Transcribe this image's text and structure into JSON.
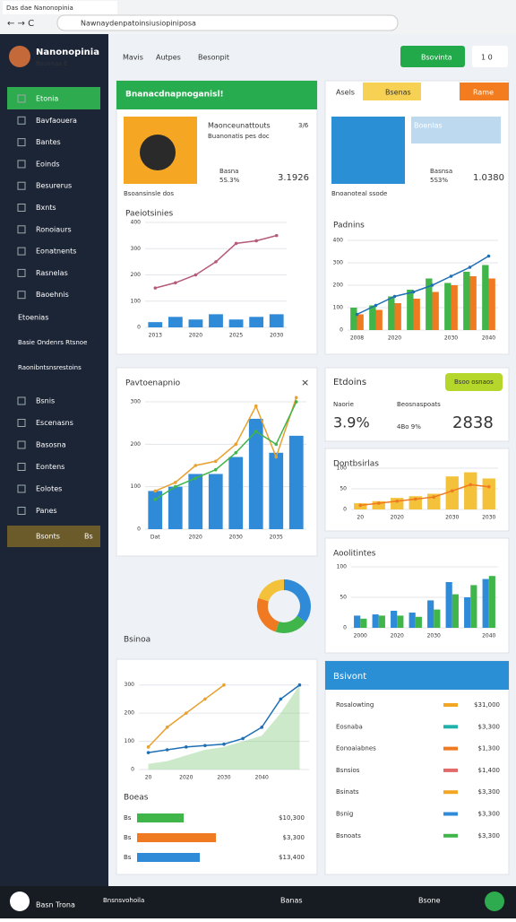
{
  "browser": {
    "tab": "Das dae Nanonopinia",
    "url": "Nawnaydenpatoinsiusiopiniposa"
  },
  "sidebar": {
    "brand": "Nanonopinia",
    "sub": "Bsosnas E",
    "items": [
      "Etonia",
      "Bavfaouera",
      "Bantes",
      "Eoinds",
      "Besurerus",
      "Bxnts",
      "Ronoiaurs",
      "Eonatnents",
      "Rasnelas",
      "Baoehnis"
    ],
    "section": "Etoenias",
    "links": [
      "Basie Ondenrs Rtsnoe",
      "Raonibntsnsrestoins"
    ],
    "items2": [
      "Bsnis",
      "Escenasns",
      "Basosna",
      "Eontens",
      "Eolotes",
      "Panes"
    ],
    "footer": "Bsonts",
    "footer_badge": "Bs"
  },
  "header": {
    "nav": [
      "Mavis",
      "Autpes",
      "Besonpit"
    ],
    "button": "Bsovinta",
    "badge": "1 0"
  },
  "card1": {
    "title": "Bnanacdnapnoganisl!",
    "name": "Maonceunattouts",
    "sub": "Buanonatis pes doc",
    "num": "3/6",
    "small1": "Basna",
    "small2": "5S.3%",
    "value": "3.1926",
    "caption": "Bsoansinsle dos"
  },
  "card2": {
    "tab": "Asels",
    "chip": "Bsenas",
    "chip2": "Rame",
    "name": "Boenlas",
    "small1": "Basnsa",
    "small2": "5S3%",
    "value": "1.0380",
    "caption": "Bnoanoteal ssode"
  },
  "card3": {
    "close": "×"
  },
  "card4": {
    "title": "Etdoins",
    "badge": "Bsoo osnaos",
    "l1": "Naorie",
    "v1": "3.9%",
    "l2": "Beosnaspoats",
    "l3": "4Bo 9%",
    "v2": "2838"
  },
  "card7": {
    "title": "Bsivont",
    "rows": [
      {
        "label": "Rosalowting",
        "value": "$31,000"
      },
      {
        "label": "Eosnaba",
        "value": "$3,300"
      },
      {
        "label": "Eonoaiabnes",
        "value": "$1,300"
      },
      {
        "label": "Bsnsios",
        "value": "$1,400"
      },
      {
        "label": "Bsinats",
        "value": "$3,300"
      },
      {
        "label": "Bsnig",
        "value": "$3,300"
      },
      {
        "label": "Bsnoats",
        "value": "$3,300"
      }
    ]
  },
  "boeas": {
    "title": "Boeas",
    "rows": [
      {
        "label": "Bs",
        "value": "$10,300"
      },
      {
        "label": "Bs",
        "value": "$3,300"
      },
      {
        "label": "Bs",
        "value": "$13,400"
      }
    ]
  },
  "taskbar": {
    "t1": "Basn Trona",
    "t2": "Bnsnsvohoila",
    "t3": "Banas",
    "t4": "Bsone"
  },
  "donut": {
    "values": [
      35,
      20,
      25,
      20
    ],
    "colors": [
      "#2f8ad8",
      "#3fb54a",
      "#f07a22",
      "#f3c13a"
    ]
  },
  "charts": [
    {
      "title": "Paeiotsinies",
      "ylim": [
        0,
        400
      ],
      "yticks": [
        0,
        100,
        200,
        300,
        400
      ],
      "categories": [
        "2013",
        null,
        "2020",
        null,
        "2025",
        null,
        "2030"
      ],
      "series": [
        {
          "type": "bar",
          "color": "#2f8ad8",
          "values": [
            20,
            40,
            30,
            50,
            30,
            40,
            50
          ]
        },
        {
          "type": "line",
          "color": "#b55a7a",
          "values": [
            150,
            170,
            200,
            250,
            320,
            330,
            350
          ]
        }
      ]
    },
    {
      "title": "Padnins",
      "ylim": [
        0,
        400
      ],
      "yticks": [
        0,
        100,
        200,
        300,
        400
      ],
      "categories": [
        "2008",
        null,
        "2020",
        null,
        null,
        "2030",
        null,
        "2040"
      ],
      "series": [
        {
          "type": "bar",
          "color": "#3fb54a",
          "values": [
            100,
            110,
            150,
            180,
            230,
            210,
            260,
            290
          ]
        },
        {
          "type": "bar",
          "color": "#f07a22",
          "values": [
            70,
            90,
            120,
            140,
            170,
            200,
            240,
            230
          ]
        },
        {
          "type": "line",
          "color": "#1f6fb5",
          "values": [
            70,
            110,
            150,
            170,
            200,
            240,
            280,
            330
          ]
        }
      ]
    },
    {
      "title": "Pavtoenapnio",
      "ylim": [
        0,
        300
      ],
      "yticks": [
        0,
        100,
        200,
        300
      ],
      "categories": [
        "Dat",
        null,
        "2020",
        null,
        "2030",
        null,
        "2035",
        null
      ],
      "series": [
        {
          "type": "bar",
          "color": "#2f8ad8",
          "values": [
            90,
            100,
            130,
            130,
            170,
            260,
            180,
            220
          ]
        },
        {
          "type": "line",
          "color": "#e8a030",
          "values": [
            90,
            110,
            150,
            160,
            200,
            290,
            170,
            310
          ]
        },
        {
          "type": "line",
          "color": "#3fb54a",
          "values": [
            70,
            100,
            120,
            140,
            180,
            230,
            200,
            300
          ]
        }
      ]
    },
    {
      "title": "Dontbsirlas",
      "ylim": [
        0,
        100
      ],
      "yticks": [
        0,
        50,
        100
      ],
      "categories": [
        "20",
        null,
        "2020",
        null,
        null,
        "2030",
        null,
        "2030"
      ],
      "series": [
        {
          "type": "bar",
          "color": "#f3c13a",
          "values": [
            15,
            20,
            28,
            32,
            38,
            80,
            90,
            75
          ]
        },
        {
          "type": "line",
          "color": "#f07a22",
          "values": [
            10,
            15,
            20,
            25,
            30,
            45,
            60,
            55
          ]
        }
      ]
    },
    {
      "title": "Aoolitintes",
      "ylim": [
        0,
        100
      ],
      "yticks": [
        0,
        50,
        100
      ],
      "categories": [
        "2000",
        null,
        "2020",
        null,
        "2030",
        null,
        null,
        "2040"
      ],
      "series": [
        {
          "type": "bar",
          "color": "#2f8ad8",
          "values": [
            20,
            22,
            28,
            25,
            45,
            75,
            50,
            80
          ]
        },
        {
          "type": "bar",
          "color": "#3fb54a",
          "values": [
            15,
            20,
            20,
            18,
            30,
            55,
            70,
            85
          ]
        }
      ]
    },
    {
      "title": "Bsinoa",
      "ylim": [
        0,
        350
      ],
      "yticks": [
        0,
        100,
        200,
        300
      ],
      "categories": [
        "20",
        null,
        "2020",
        null,
        "2030",
        null,
        "2040",
        null,
        null
      ],
      "series": [
        {
          "type": "area",
          "color": "#8fcf8a",
          "values": [
            20,
            30,
            50,
            70,
            80,
            100,
            120,
            200,
            300
          ]
        },
        {
          "type": "line",
          "color": "#e8a030",
          "values": [
            80,
            150,
            200,
            250,
            300,
            null,
            null,
            null,
            null
          ]
        },
        {
          "type": "line",
          "color": "#1f6fb5",
          "values": [
            60,
            70,
            80,
            85,
            90,
            110,
            150,
            250,
            300
          ]
        }
      ]
    }
  ]
}
